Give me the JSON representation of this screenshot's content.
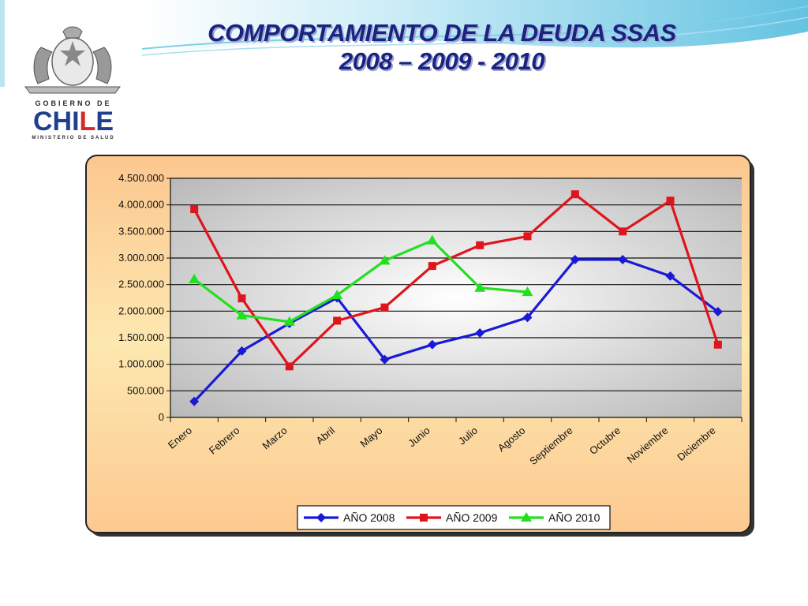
{
  "header": {
    "title_line1": "COMPORTAMIENTO DE LA DEUDA SSAS",
    "title_line2": "2008 – 2009 - 2010"
  },
  "logo": {
    "line1": "GOBIERNO DE",
    "brand_part1": "CHI",
    "brand_part2": "L",
    "brand_part3": "E",
    "line3": "MINISTERIO DE SALUD"
  },
  "colors": {
    "panel_bg": "#fbd199",
    "plot_bg": "#cfcfcf",
    "series_2008": "#1a1ad6",
    "series_2009": "#e0141c",
    "series_2010": "#22e01f",
    "title": "#1a237e"
  },
  "chart_data": {
    "type": "line",
    "categories": [
      "Enero",
      "Febrero",
      "Marzo",
      "Abril",
      "Mayo",
      "Junio",
      "Julio",
      "Agosto",
      "Septiembre",
      "Octubre",
      "Noviembre",
      "Diciembre"
    ],
    "series": [
      {
        "name": "AÑO 2008",
        "marker": "diamond",
        "values": [
          300000,
          1250000,
          1770000,
          2250000,
          1090000,
          1370000,
          1590000,
          1880000,
          2970000,
          2970000,
          2660000,
          1990000
        ]
      },
      {
        "name": "AÑO 2009",
        "marker": "square",
        "values": [
          3920000,
          2240000,
          960000,
          1820000,
          2070000,
          2850000,
          3240000,
          3410000,
          4200000,
          3500000,
          4080000,
          1370000
        ]
      },
      {
        "name": "AÑO 2010",
        "marker": "triangle",
        "values": [
          2600000,
          1920000,
          1800000,
          2300000,
          2950000,
          3330000,
          2440000,
          2360000,
          null,
          null,
          null,
          null
        ]
      }
    ],
    "ylim": [
      0,
      4500000
    ],
    "yticks": [
      "0",
      "500.000",
      "1.000.000",
      "1.500.000",
      "2.000.000",
      "2.500.000",
      "3.000.000",
      "3.500.000",
      "4.000.000",
      "4.500.000"
    ],
    "grid": true,
    "legend_position": "bottom"
  }
}
